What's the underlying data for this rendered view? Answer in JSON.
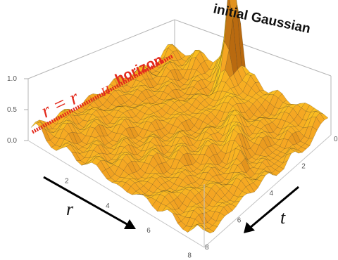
{
  "chart_data": {
    "type": "surface3d",
    "title": "",
    "axes": {
      "r": {
        "label": "r",
        "ticks": [
          "2",
          "4",
          "6",
          "8"
        ]
      },
      "t": {
        "label": "t",
        "ticks": [
          "0",
          "2",
          "4",
          "6",
          "8"
        ]
      },
      "z": {
        "ticks": [
          "0.0",
          "0.5",
          "1.0"
        ],
        "range": [
          0,
          1
        ]
      }
    },
    "annotations": {
      "horizon_math": "r = r",
      "horizon_sub": "H",
      "horizon_text": "horizon",
      "peak_label": "initial Gaussian"
    },
    "peak": {
      "r": 8,
      "t": 0,
      "value": 1.0
    },
    "colors": {
      "surface_high": "#ffd21f",
      "surface_mid": "#f5a623",
      "surface_low": "#b96a10",
      "mesh": "#3b2a10",
      "horizon": "#e32a1c",
      "box": "#b5b5b5"
    }
  }
}
